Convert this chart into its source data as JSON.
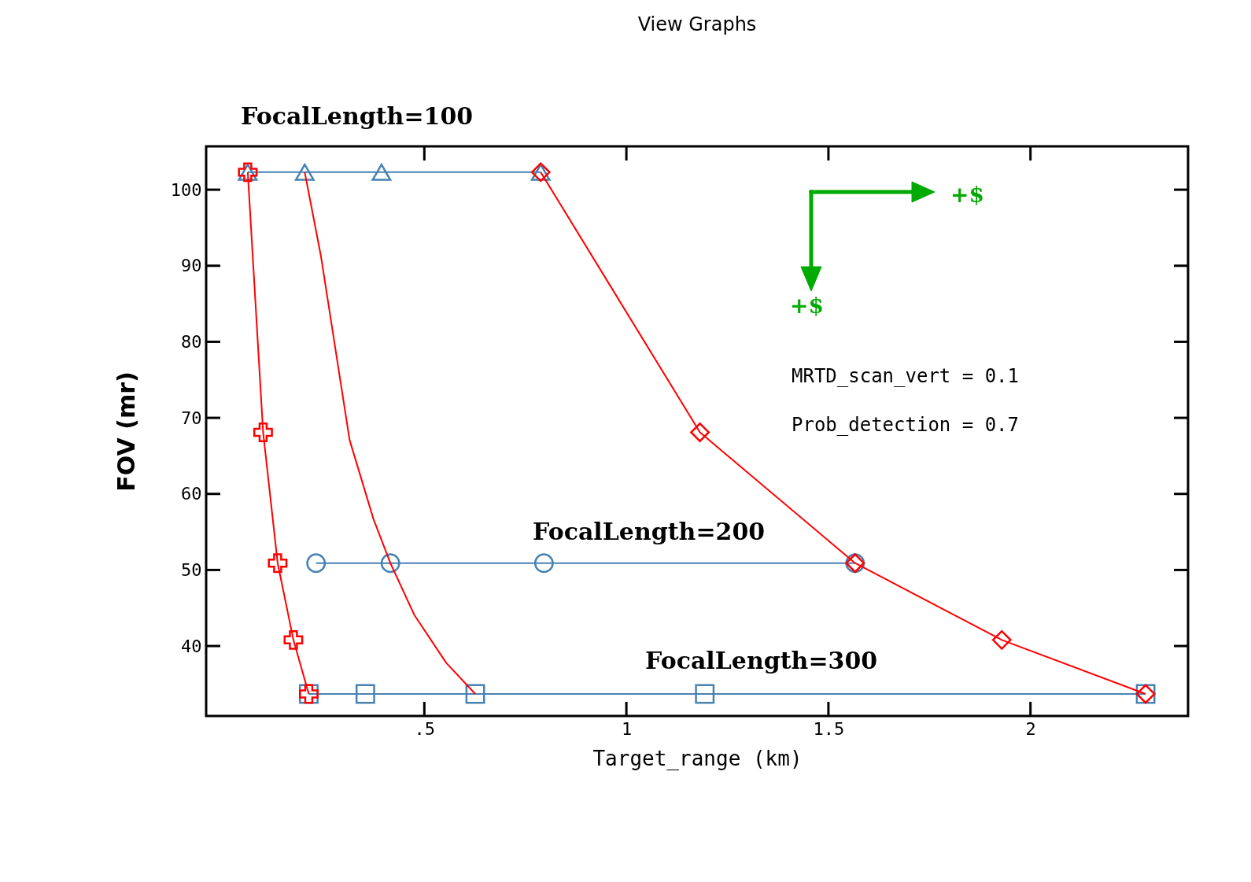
{
  "chart_data": {
    "type": "line",
    "title": "View Graphs",
    "xlabel": "Target_range (km)",
    "ylabel": "FOV (mr)",
    "xlim": [
      -0.04,
      2.39
    ],
    "ylim": [
      30.8,
      105.7
    ],
    "xticks": [
      {
        "value": 0.5,
        "label": ".5"
      },
      1,
      1.5,
      2
    ],
    "yticks": [
      40,
      50,
      60,
      70,
      80,
      90,
      100
    ],
    "grid": false,
    "annotations": [
      "+$",
      "+$",
      "MRTD_scan_vert = 0.1",
      "Prob_detection = 0.7"
    ],
    "series": [
      {
        "name": "FocalLength=100",
        "color": "#4682b4",
        "marker": "triangle",
        "x": [
          0.063,
          0.204,
          0.394,
          0.788
        ],
        "values": [
          102.3,
          102.3,
          102.3,
          102.3
        ]
      },
      {
        "name": "FocalLength=200",
        "color": "#4682b4",
        "marker": "circle",
        "x": [
          0.232,
          0.416,
          0.796,
          1.566
        ],
        "values": [
          50.9,
          50.9,
          50.9,
          50.9
        ]
      },
      {
        "name": "FocalLength=300",
        "color": "#4682b4",
        "marker": "square",
        "x": [
          0.214,
          0.354,
          0.626,
          1.194,
          2.285
        ],
        "values": [
          33.7,
          33.7,
          33.7,
          33.7,
          33.7
        ]
      },
      {
        "color": "#ff0000",
        "marker": "cross",
        "x": [
          0.063,
          0.101,
          0.137,
          0.176,
          0.214
        ],
        "values": [
          102.3,
          68.1,
          50.9,
          40.8,
          33.7
        ]
      },
      {
        "color": "#ff0000",
        "marker": "none",
        "x": [
          0.204,
          0.244,
          0.315,
          0.374,
          0.416,
          0.475,
          0.554,
          0.626
        ],
        "values": [
          102.3,
          91.3,
          67.1,
          56.7,
          50.9,
          44.1,
          37.8,
          33.7
        ]
      },
      {
        "color": "#ff0000",
        "marker": "diamond",
        "x": [
          0.788,
          1.182,
          1.566,
          1.929,
          2.285
        ],
        "values": [
          102.3,
          68.1,
          50.9,
          40.8,
          33.7
        ]
      }
    ]
  }
}
